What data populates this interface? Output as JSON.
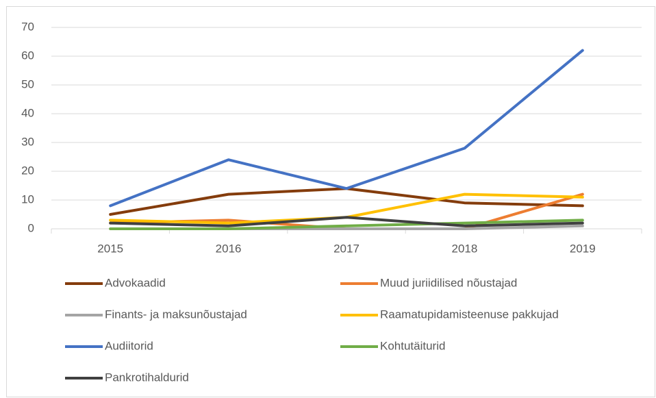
{
  "chart_data": {
    "type": "line",
    "categories": [
      "2015",
      "2016",
      "2017",
      "2018",
      "2019"
    ],
    "series": [
      {
        "name": "Advokaadid",
        "color": "#843c0c",
        "values": [
          5,
          12,
          14,
          9,
          8
        ]
      },
      {
        "name": "Muud juriidilised nõustajad",
        "color": "#ed7d31",
        "values": [
          2,
          3,
          0,
          0,
          12
        ]
      },
      {
        "name": "Finants- ja maksunõustajad",
        "color": "#a5a5a5",
        "values": [
          0,
          0,
          0,
          0,
          1
        ]
      },
      {
        "name": "Raamatupidamisteenuse pakkujad",
        "color": "#ffc000",
        "values": [
          3,
          2,
          4,
          12,
          11
        ]
      },
      {
        "name": "Audiitorid",
        "color": "#4472c4",
        "values": [
          8,
          24,
          14,
          28,
          62
        ]
      },
      {
        "name": "Kohtutäiturid",
        "color": "#70ad47",
        "values": [
          0,
          0,
          1,
          2,
          3
        ]
      },
      {
        "name": "Pankrotihaldurid",
        "color": "#404040",
        "values": [
          2,
          1,
          4,
          1,
          2
        ]
      }
    ],
    "ylim": [
      0,
      70
    ],
    "yticks": [
      0,
      10,
      20,
      30,
      40,
      50,
      60,
      70
    ],
    "grid": true,
    "legend": "bottom"
  }
}
